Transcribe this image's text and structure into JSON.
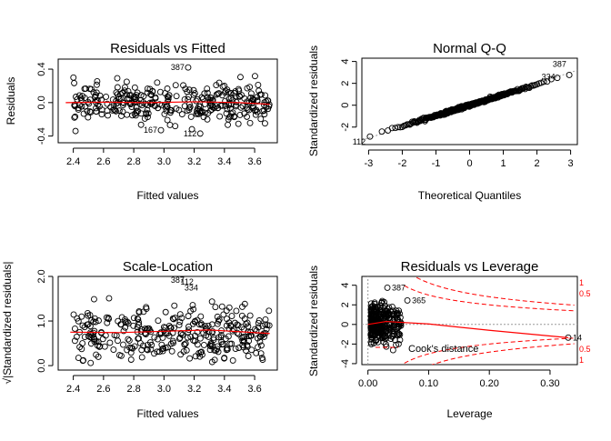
{
  "figure": {
    "background": "#ffffff",
    "accent_red": "#ff0000"
  },
  "chart_data": [
    {
      "type": "scatter",
      "title": "Residuals vs Fitted",
      "xlabel": "Fitted values",
      "ylabel": "Residuals",
      "xlim": [
        2.3,
        3.75
      ],
      "ylim": [
        -0.48,
        0.52
      ],
      "xticks": [
        2.4,
        2.6,
        2.8,
        3.0,
        3.2,
        3.4,
        3.6
      ],
      "yticks": [
        -0.4,
        0.0,
        0.4
      ],
      "tick_labels_x": [
        "2.4",
        "2.6",
        "2.8",
        "3.0",
        "3.2",
        "3.4",
        "3.6"
      ],
      "tick_labels_y": [
        "-0.4",
        "0.0",
        "0.4"
      ],
      "smooth": {
        "x": [
          2.35,
          2.6,
          2.9,
          3.2,
          3.5,
          3.7
        ],
        "y": [
          0.0,
          0.005,
          0.0,
          0.01,
          0.0,
          -0.02
        ]
      },
      "labeled_points": [
        {
          "label": "387",
          "x": 3.16,
          "y": 0.42
        },
        {
          "label": "167",
          "x": 2.98,
          "y": -0.33
        },
        {
          "label": "112",
          "x": 3.24,
          "y": -0.37
        }
      ]
    },
    {
      "type": "scatter",
      "title": "Normal Q-Q",
      "xlabel": "Theoretical Quantiles",
      "ylabel": "Standardized residuals",
      "xlim": [
        -3.2,
        3.2
      ],
      "ylim": [
        -3.6,
        4.3
      ],
      "xticks": [
        -3,
        -2,
        -1,
        0,
        1,
        2,
        3
      ],
      "yticks": [
        -2,
        0,
        2,
        4
      ],
      "tick_labels_x": [
        "-3",
        "-2",
        "-1",
        "0",
        "1",
        "2",
        "3"
      ],
      "tick_labels_y": [
        "-2",
        "0",
        "2",
        "4"
      ],
      "reference_line": {
        "intercept": 0,
        "slope": 1
      },
      "labeled_points": [
        {
          "label": "387",
          "x": 2.98,
          "y": 3.75
        },
        {
          "label": "334",
          "x": 2.65,
          "y": 2.6
        },
        {
          "label": "112",
          "x": -2.98,
          "y": -3.35
        }
      ]
    },
    {
      "type": "scatter",
      "title": "Scale-Location",
      "xlabel": "Fitted values",
      "ylabel": "√|Standardized residuals|",
      "xlim": [
        2.3,
        3.75
      ],
      "ylim": [
        -0.1,
        2.0
      ],
      "xticks": [
        2.4,
        2.6,
        2.8,
        3.0,
        3.2,
        3.4,
        3.6
      ],
      "yticks": [
        0.0,
        1.0,
        2.0
      ],
      "tick_labels_x": [
        "2.4",
        "2.6",
        "2.8",
        "3.0",
        "3.2",
        "3.4",
        "3.6"
      ],
      "tick_labels_y": [
        "0.0",
        "1.0",
        "2.0"
      ],
      "smooth": {
        "x": [
          2.38,
          2.7,
          3.0,
          3.3,
          3.7
        ],
        "y": [
          0.75,
          0.74,
          0.77,
          0.8,
          0.72
        ]
      },
      "labeled_points": [
        {
          "label": "387",
          "x": 3.16,
          "y": 1.92
        },
        {
          "label": "334",
          "x": 3.25,
          "y": 1.75
        },
        {
          "label": "112",
          "x": 3.22,
          "y": 1.88
        }
      ]
    },
    {
      "type": "scatter",
      "title": "Residuals vs Leverage",
      "xlabel": "Leverage",
      "ylabel": "Standardized residuals",
      "xlim": [
        -0.01,
        0.345
      ],
      "ylim": [
        -4.1,
        4.9
      ],
      "xticks": [
        0.0,
        0.1,
        0.2,
        0.3
      ],
      "yticks": [
        -4,
        -2,
        0,
        2,
        4
      ],
      "tick_labels_x": [
        "0.00",
        "0.10",
        "0.20",
        "0.30"
      ],
      "tick_labels_y": [
        "-4",
        "-2",
        "0",
        "2",
        "4"
      ],
      "smooth": {
        "x": [
          0.0,
          0.03,
          0.1,
          0.2,
          0.33
        ],
        "y": [
          0.0,
          0.3,
          0.05,
          -0.6,
          -1.35
        ]
      },
      "labeled_points": [
        {
          "label": "387",
          "x": 0.032,
          "y": 3.75
        },
        {
          "label": "365",
          "x": 0.065,
          "y": 2.45
        },
        {
          "label": "14",
          "x": 0.33,
          "y": -1.35
        }
      ],
      "cooks_distance": {
        "legend": "Cook's distance",
        "contour_labels": [
          "1",
          "0.5",
          "0.5",
          "1"
        ]
      }
    }
  ]
}
